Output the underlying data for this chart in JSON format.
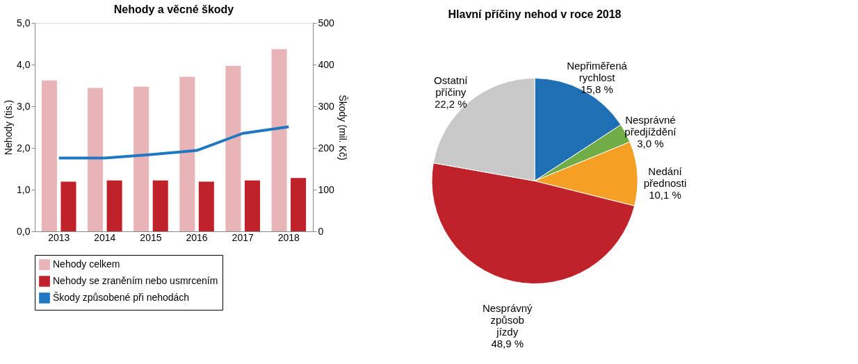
{
  "chart_data": [
    {
      "type": "bar",
      "title": "Nehody a věcné škody",
      "ylabel": "Nehody (tis.)",
      "y2label": "Škody (mil. Kč)",
      "categories": [
        "2013",
        "2014",
        "2015",
        "2016",
        "2017",
        "2018"
      ],
      "series": [
        {
          "name": "Nehody celkem",
          "color": "#e8b4b8",
          "values": [
            3.62,
            3.44,
            3.47,
            3.71,
            3.97,
            4.37
          ]
        },
        {
          "name": "Nehody se zraněním nebo usmrcením",
          "color": "#c0222a",
          "values": [
            1.19,
            1.22,
            1.22,
            1.19,
            1.22,
            1.28
          ]
        },
        {
          "name": "Škody způsobené při nehodách",
          "type": "line",
          "axis": "y2",
          "color": "#1f78c1",
          "values": [
            176,
            176,
            184,
            194,
            235,
            251
          ]
        }
      ],
      "ylim": [
        0,
        5
      ],
      "yticks": [
        {
          "value": 0,
          "label": "0,0"
        },
        {
          "value": 1,
          "label": "1,0"
        },
        {
          "value": 2,
          "label": "2,0"
        },
        {
          "value": 3,
          "label": "3,0"
        },
        {
          "value": 4,
          "label": "4,0"
        },
        {
          "value": 5,
          "label": "5,0"
        }
      ],
      "y2lim": [
        0,
        500
      ],
      "y2ticks": [
        0,
        100,
        200,
        300,
        400,
        500
      ],
      "grid": false,
      "legend": "bottom"
    },
    {
      "type": "pie",
      "title": "Hlavní příčiny nehod v roce 2018",
      "categories": [
        "Nepřiměřená rychlost",
        "Nesprávné předjíždění",
        "Nedání přednosti",
        "Nesprávný způsob jízdy",
        "Ostatní příčiny"
      ],
      "values": [
        15.8,
        3.0,
        10.1,
        48.9,
        22.2
      ],
      "colors": [
        "#1f6fb5",
        "#70ad47",
        "#f4a024",
        "#c0222a",
        "#c8c8c8"
      ],
      "value_labels": [
        "15,8 %",
        "3,0 %",
        "10,1 %",
        "48,9 %",
        "22,2 %"
      ]
    }
  ]
}
